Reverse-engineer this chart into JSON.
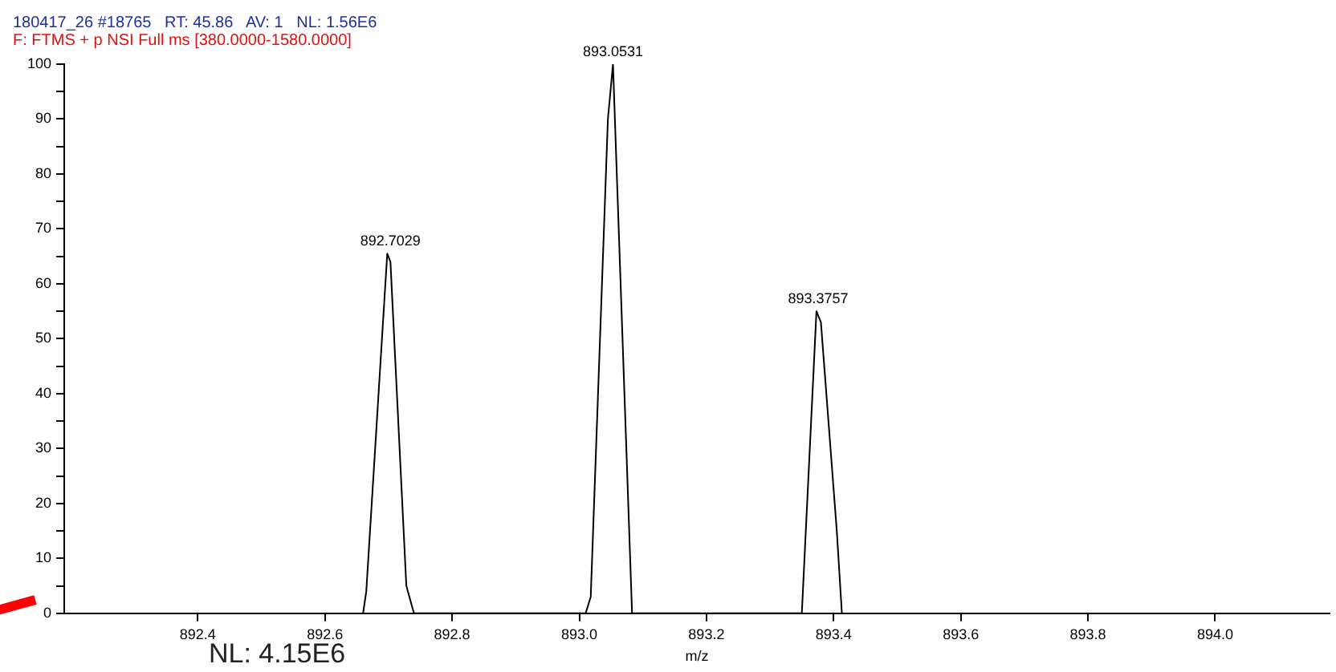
{
  "chart_data": {
    "type": "line",
    "title": "180417_26 #18765   RT: 45.86   AV: 1   NL: 1.56E6",
    "subtitle": "F: FTMS + p NSI Full ms [380.0000-1580.0000]",
    "xlabel": "m/z",
    "series": [
      {
        "color": "#000000",
        "x": [
          892.66,
          892.665,
          892.698,
          892.703,
          892.728,
          892.74,
          893.01,
          893.018,
          893.045,
          893.053,
          893.083,
          893.35,
          893.373,
          893.38,
          893.405,
          893.413
        ],
        "values": [
          0,
          4,
          65.5,
          64,
          5,
          0,
          0,
          3,
          90,
          100,
          0,
          0,
          55,
          53,
          15,
          0
        ]
      }
    ],
    "xlim": [
      892.19,
      894.18
    ],
    "xticks": [
      892.4,
      892.6,
      892.8,
      {
        "value": 893,
        "label": "893.0"
      },
      893.2,
      893.4,
      893.6,
      893.8,
      {
        "value": 894,
        "label": "894.0"
      }
    ],
    "ylim": [
      0,
      100
    ],
    "yticks": [
      0,
      {
        "value": 5,
        "label": null
      },
      10,
      {
        "value": 15,
        "label": null
      },
      20,
      {
        "value": 25,
        "label": null
      },
      30,
      {
        "value": 35,
        "label": null
      },
      40,
      {
        "value": 45,
        "label": null
      },
      50,
      {
        "value": 55,
        "label": null
      },
      60,
      {
        "value": 65,
        "label": null
      },
      70,
      {
        "value": 75,
        "label": null
      },
      80,
      {
        "value": 85,
        "label": null
      },
      90,
      {
        "value": 95,
        "label": null
      },
      100
    ],
    "annotations": [
      {
        "text": "892.7029",
        "x": 892.7029,
        "y": 65.5
      },
      {
        "text": "893.0531",
        "x": 893.0531,
        "y": 100
      },
      {
        "text": "893.3757",
        "x": 893.3757,
        "y": 55
      },
      "NL: 4.15E6"
    ]
  }
}
